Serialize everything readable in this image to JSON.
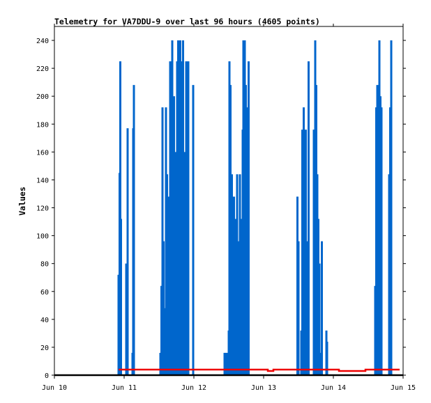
{
  "chart_data": {
    "type": "line",
    "title": "Telemetry for VA7DDU-9 over last 96 hours (4605 points)",
    "xlabel": "",
    "ylabel": "Values",
    "xlim": [
      "Jun 10",
      "Jun 15"
    ],
    "ylim": [
      0,
      250
    ],
    "grid": false,
    "legend": "none",
    "x_ticks": [
      "Jun 10",
      "Jun 11",
      "Jun 12",
      "Jun 13",
      "Jun 14",
      "Jun 15"
    ],
    "y_ticks": [
      0,
      20,
      40,
      60,
      80,
      100,
      120,
      140,
      160,
      180,
      200,
      220,
      240
    ],
    "series": [
      {
        "color": "#0066cc",
        "style": "bars",
        "x_unit": "days since Jun 10",
        "points": [
          [
            0.92,
            72
          ],
          [
            0.935,
            145
          ],
          [
            0.945,
            225
          ],
          [
            0.955,
            112
          ],
          [
            1.03,
            80
          ],
          [
            1.05,
            177
          ],
          [
            1.12,
            16
          ],
          [
            1.13,
            177
          ],
          [
            1.14,
            208
          ],
          [
            1.52,
            16
          ],
          [
            1.535,
            64
          ],
          [
            1.55,
            192
          ],
          [
            1.565,
            96
          ],
          [
            1.59,
            48
          ],
          [
            1.6,
            192
          ],
          [
            1.615,
            144
          ],
          [
            1.63,
            128
          ],
          [
            1.645,
            112
          ],
          [
            1.66,
            225
          ],
          [
            1.675,
            104
          ],
          [
            1.69,
            240
          ],
          [
            1.7,
            192
          ],
          [
            1.715,
            200
          ],
          [
            1.73,
            160
          ],
          [
            1.745,
            80
          ],
          [
            1.76,
            225
          ],
          [
            1.775,
            240
          ],
          [
            1.79,
            128
          ],
          [
            1.805,
            240
          ],
          [
            1.815,
            225
          ],
          [
            1.83,
            48
          ],
          [
            1.845,
            240
          ],
          [
            1.86,
            160
          ],
          [
            1.875,
            48
          ],
          [
            1.89,
            225
          ],
          [
            1.905,
            32
          ],
          [
            1.92,
            225
          ],
          [
            1.99,
            208
          ],
          [
            2.44,
            16
          ],
          [
            2.46,
            16
          ],
          [
            2.48,
            16
          ],
          [
            2.5,
            32
          ],
          [
            2.51,
            225
          ],
          [
            2.525,
            208
          ],
          [
            2.545,
            144
          ],
          [
            2.56,
            112
          ],
          [
            2.575,
            128
          ],
          [
            2.6,
            112
          ],
          [
            2.62,
            144
          ],
          [
            2.645,
            96
          ],
          [
            2.66,
            144
          ],
          [
            2.68,
            112
          ],
          [
            2.7,
            176
          ],
          [
            2.71,
            240
          ],
          [
            2.72,
            208
          ],
          [
            2.73,
            240
          ],
          [
            2.745,
            208
          ],
          [
            2.76,
            192
          ],
          [
            2.77,
            80
          ],
          [
            2.785,
            225
          ],
          [
            3.485,
            128
          ],
          [
            3.5,
            96
          ],
          [
            3.54,
            32
          ],
          [
            3.555,
            176
          ],
          [
            3.575,
            192
          ],
          [
            3.59,
            64
          ],
          [
            3.605,
            176
          ],
          [
            3.625,
            96
          ],
          [
            3.645,
            225
          ],
          [
            3.72,
            176
          ],
          [
            3.74,
            240
          ],
          [
            3.755,
            208
          ],
          [
            3.77,
            144
          ],
          [
            3.785,
            112
          ],
          [
            3.8,
            80
          ],
          [
            3.815,
            16
          ],
          [
            3.835,
            96
          ],
          [
            3.9,
            32
          ],
          [
            3.91,
            24
          ],
          [
            4.6,
            64
          ],
          [
            4.615,
            192
          ],
          [
            4.63,
            208
          ],
          [
            4.645,
            64
          ],
          [
            4.66,
            240
          ],
          [
            4.675,
            200
          ],
          [
            4.69,
            192
          ],
          [
            4.8,
            144
          ],
          [
            4.815,
            192
          ],
          [
            4.83,
            240
          ]
        ]
      },
      {
        "color": "#ee0000",
        "style": "step",
        "x_unit": "days since Jun 10",
        "points": [
          [
            0.92,
            4
          ],
          [
            3.06,
            4
          ],
          [
            3.06,
            3
          ],
          [
            3.14,
            3
          ],
          [
            3.14,
            4
          ],
          [
            4.08,
            4
          ],
          [
            4.08,
            3
          ],
          [
            4.46,
            3
          ],
          [
            4.46,
            4
          ],
          [
            4.95,
            4
          ]
        ]
      },
      {
        "color": "#000000",
        "style": "step",
        "x_unit": "days since Jun 10",
        "points": [
          [
            0,
            0
          ],
          [
            5,
            0
          ]
        ]
      }
    ]
  }
}
